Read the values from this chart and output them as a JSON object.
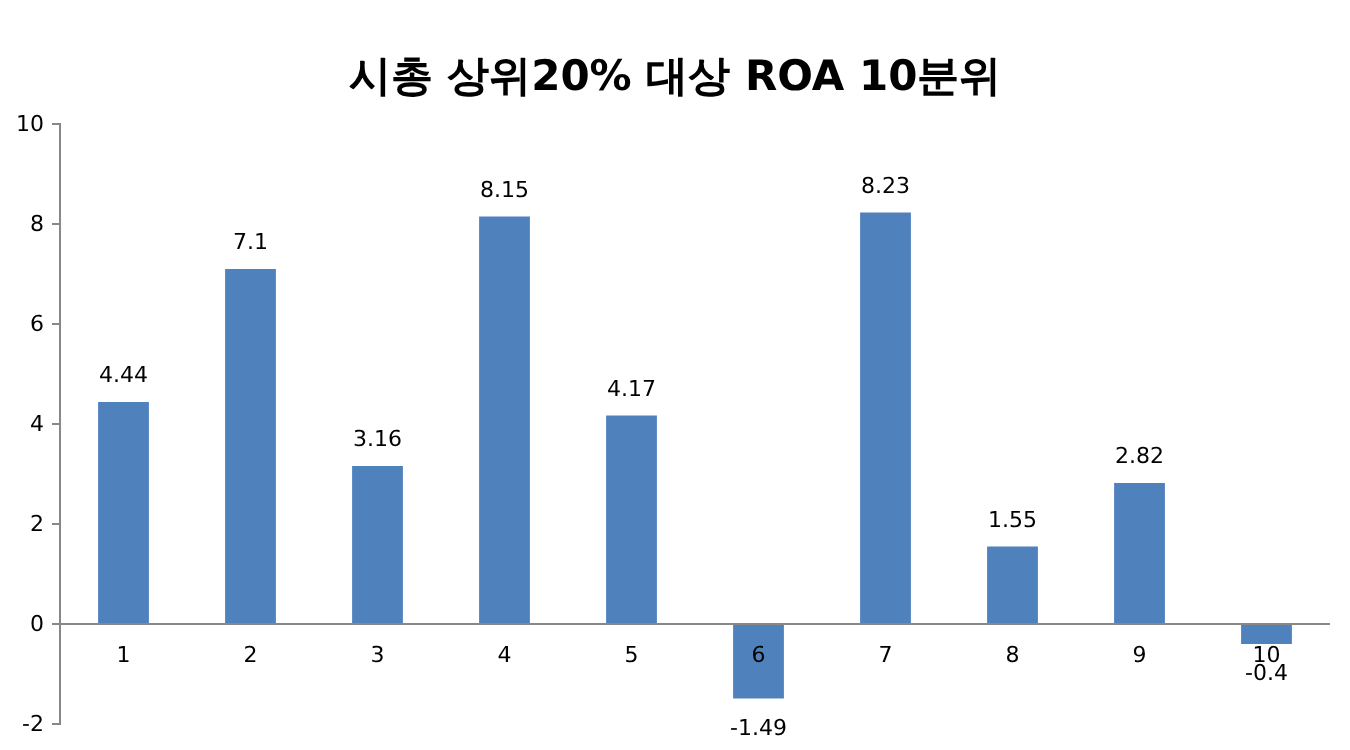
{
  "chart_data": {
    "type": "bar",
    "title": "시총 상위20% 대상 ROA 10분위",
    "categories": [
      "1",
      "2",
      "3",
      "4",
      "5",
      "6",
      "7",
      "8",
      "9",
      "10"
    ],
    "values": [
      4.44,
      7.1,
      3.16,
      8.15,
      4.17,
      -1.49,
      8.23,
      1.55,
      2.82,
      -0.4
    ],
    "color": "#4f81bd",
    "ylim": [
      -2,
      10
    ],
    "yticks": [
      -2,
      0,
      2,
      4,
      6,
      8,
      10
    ],
    "grid": false,
    "data_labels": true
  }
}
